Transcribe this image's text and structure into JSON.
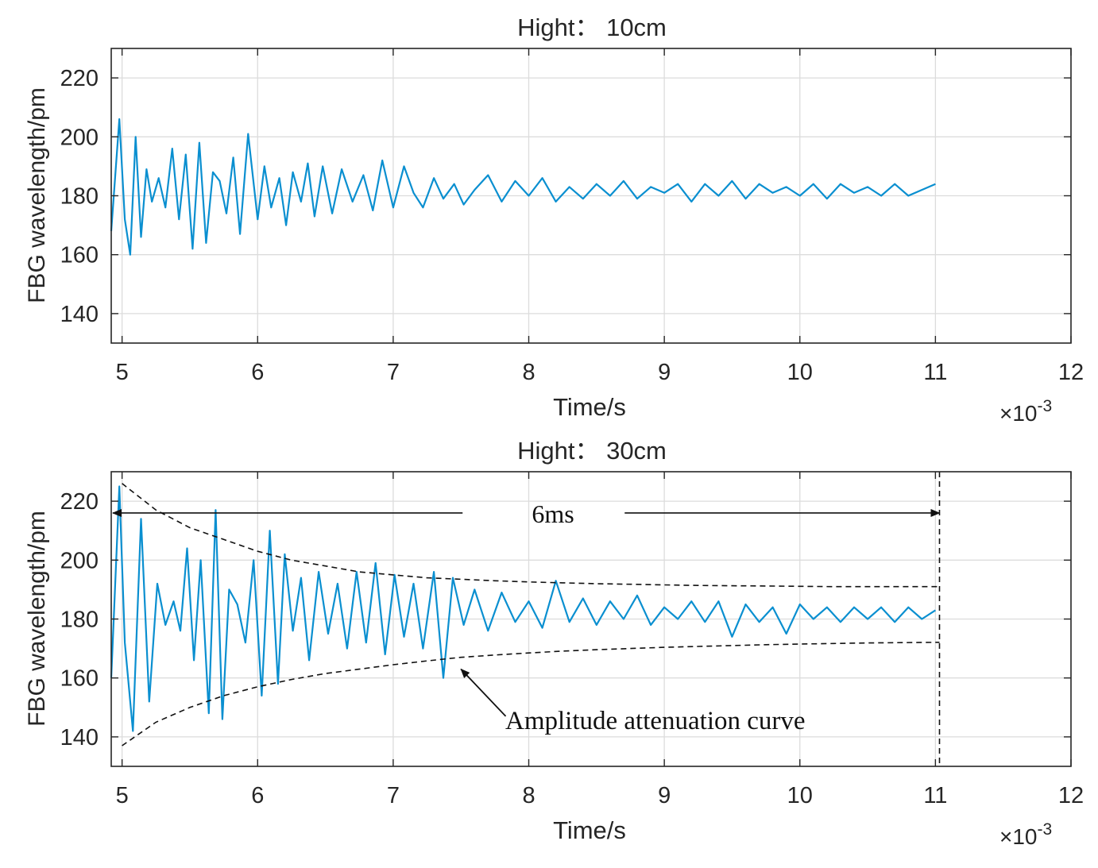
{
  "chart_data": [
    {
      "type": "line",
      "title": "Hight： 10cm",
      "xlabel": "Time/s",
      "ylabel": "FBG wavelength/pm",
      "x_exponent_label": "×10",
      "x_exponent_power": "-3",
      "xlim": [
        4.92,
        12
      ],
      "ylim": [
        130,
        230
      ],
      "xticks": [
        5,
        6,
        7,
        8,
        9,
        10,
        11,
        12
      ],
      "yticks": [
        140,
        160,
        180,
        200,
        220
      ],
      "xtick_labels": [
        "5",
        "6",
        "7",
        "8",
        "9",
        "10",
        "11",
        "12"
      ],
      "ytick_labels": [
        "140",
        "160",
        "180",
        "200",
        "220"
      ],
      "grid": true,
      "color": "#0a8fd0",
      "series": [
        {
          "name": "signal",
          "x": [
            4.92,
            4.98,
            5.02,
            5.06,
            5.1,
            5.14,
            5.18,
            5.22,
            5.27,
            5.32,
            5.37,
            5.42,
            5.47,
            5.52,
            5.57,
            5.62,
            5.67,
            5.72,
            5.77,
            5.82,
            5.87,
            5.93,
            6.0,
            6.05,
            6.1,
            6.16,
            6.21,
            6.26,
            6.32,
            6.37,
            6.42,
            6.48,
            6.55,
            6.62,
            6.7,
            6.78,
            6.85,
            6.92,
            7.0,
            7.08,
            7.15,
            7.22,
            7.3,
            7.37,
            7.45,
            7.52,
            7.6,
            7.7,
            7.8,
            7.9,
            8.0,
            8.1,
            8.2,
            8.3,
            8.4,
            8.5,
            8.6,
            8.7,
            8.8,
            8.9,
            9.0,
            9.1,
            9.2,
            9.3,
            9.4,
            9.5,
            9.6,
            9.7,
            9.8,
            9.9,
            10.0,
            10.1,
            10.2,
            10.3,
            10.4,
            10.5,
            10.6,
            10.7,
            10.8,
            10.9,
            11.0
          ],
          "y": [
            168,
            206,
            172,
            160,
            200,
            166,
            189,
            178,
            186,
            176,
            196,
            172,
            194,
            162,
            198,
            164,
            188,
            185,
            174,
            193,
            167,
            201,
            172,
            190,
            176,
            186,
            170,
            188,
            178,
            191,
            173,
            190,
            174,
            189,
            178,
            187,
            175,
            192,
            176,
            190,
            181,
            176,
            186,
            179,
            184,
            177,
            182,
            187,
            178,
            185,
            180,
            186,
            178,
            183,
            179,
            184,
            180,
            185,
            179,
            183,
            181,
            184,
            178,
            184,
            180,
            185,
            179,
            184,
            181,
            183,
            180,
            184,
            179,
            184,
            181,
            183,
            180,
            184,
            180,
            182,
            184
          ]
        }
      ]
    },
    {
      "type": "line",
      "title": "Hight： 30cm",
      "xlabel": "Time/s",
      "ylabel": "FBG wavelength/pm",
      "x_exponent_label": "×10",
      "x_exponent_power": "-3",
      "xlim": [
        4.92,
        12
      ],
      "ylim": [
        130,
        230
      ],
      "xticks": [
        5,
        6,
        7,
        8,
        9,
        10,
        11,
        12
      ],
      "yticks": [
        140,
        160,
        180,
        200,
        220
      ],
      "xtick_labels": [
        "5",
        "6",
        "7",
        "8",
        "9",
        "10",
        "11",
        "12"
      ],
      "ytick_labels": [
        "140",
        "160",
        "180",
        "200",
        "220"
      ],
      "grid": true,
      "color": "#0a8fd0",
      "series": [
        {
          "name": "signal",
          "x": [
            4.92,
            4.98,
            5.02,
            5.08,
            5.14,
            5.2,
            5.26,
            5.32,
            5.38,
            5.43,
            5.48,
            5.53,
            5.58,
            5.64,
            5.69,
            5.74,
            5.79,
            5.85,
            5.91,
            5.97,
            6.03,
            6.09,
            6.15,
            6.2,
            6.26,
            6.32,
            6.38,
            6.45,
            6.52,
            6.59,
            6.66,
            6.73,
            6.8,
            6.87,
            6.94,
            7.01,
            7.08,
            7.15,
            7.22,
            7.3,
            7.37,
            7.44,
            7.52,
            7.6,
            7.7,
            7.8,
            7.9,
            8.0,
            8.1,
            8.2,
            8.3,
            8.4,
            8.5,
            8.6,
            8.7,
            8.8,
            8.9,
            9.0,
            9.1,
            9.2,
            9.3,
            9.4,
            9.5,
            9.6,
            9.7,
            9.8,
            9.9,
            10.0,
            10.1,
            10.2,
            10.3,
            10.4,
            10.5,
            10.6,
            10.7,
            10.8,
            10.9,
            11.0
          ],
          "y": [
            160,
            225,
            172,
            142,
            214,
            152,
            192,
            178,
            186,
            176,
            204,
            166,
            200,
            148,
            217,
            146,
            190,
            185,
            172,
            200,
            154,
            210,
            158,
            202,
            176,
            194,
            166,
            196,
            175,
            192,
            170,
            196,
            172,
            199,
            168,
            195,
            174,
            192,
            170,
            196,
            160,
            194,
            178,
            190,
            176,
            189,
            179,
            186,
            177,
            193,
            179,
            187,
            178,
            186,
            180,
            188,
            178,
            184,
            180,
            186,
            179,
            186,
            174,
            185,
            179,
            184,
            175,
            185,
            180,
            184,
            179,
            184,
            180,
            184,
            179,
            184,
            180,
            183
          ]
        }
      ],
      "annotations": {
        "duration_label": "6ms",
        "duration_from": 4.92,
        "duration_to": 11.03,
        "duration_y": 216,
        "curve_label": "Amplitude attenuation curve",
        "envelope": {
          "x": [
            5.0,
            5.25,
            5.5,
            5.75,
            6.0,
            6.25,
            6.5,
            6.75,
            7.0,
            7.25,
            7.5,
            7.75,
            8.0,
            8.25,
            8.5,
            8.75,
            9.0,
            9.25,
            9.5,
            9.75,
            10.0,
            10.25,
            10.5,
            10.75,
            11.03
          ],
          "upper": [
            226,
            217,
            211,
            207,
            203,
            200,
            198,
            196,
            195,
            194,
            193.5,
            193,
            192.6,
            192.3,
            192.0,
            191.8,
            191.6,
            191.4,
            191.3,
            191.2,
            191.1,
            191.0,
            191.0,
            191.0,
            191.0
          ],
          "lower": [
            137,
            145,
            150,
            154,
            157,
            159.5,
            161.5,
            163,
            164.5,
            165.8,
            167,
            167.8,
            168.5,
            169.1,
            169.6,
            170.0,
            170.4,
            170.7,
            171.0,
            171.3,
            171.5,
            171.7,
            171.9,
            172.0,
            172.1
          ]
        },
        "arrow_from": [
          7.83,
          147
        ],
        "arrow_to": [
          7.5,
          163
        ]
      }
    }
  ]
}
